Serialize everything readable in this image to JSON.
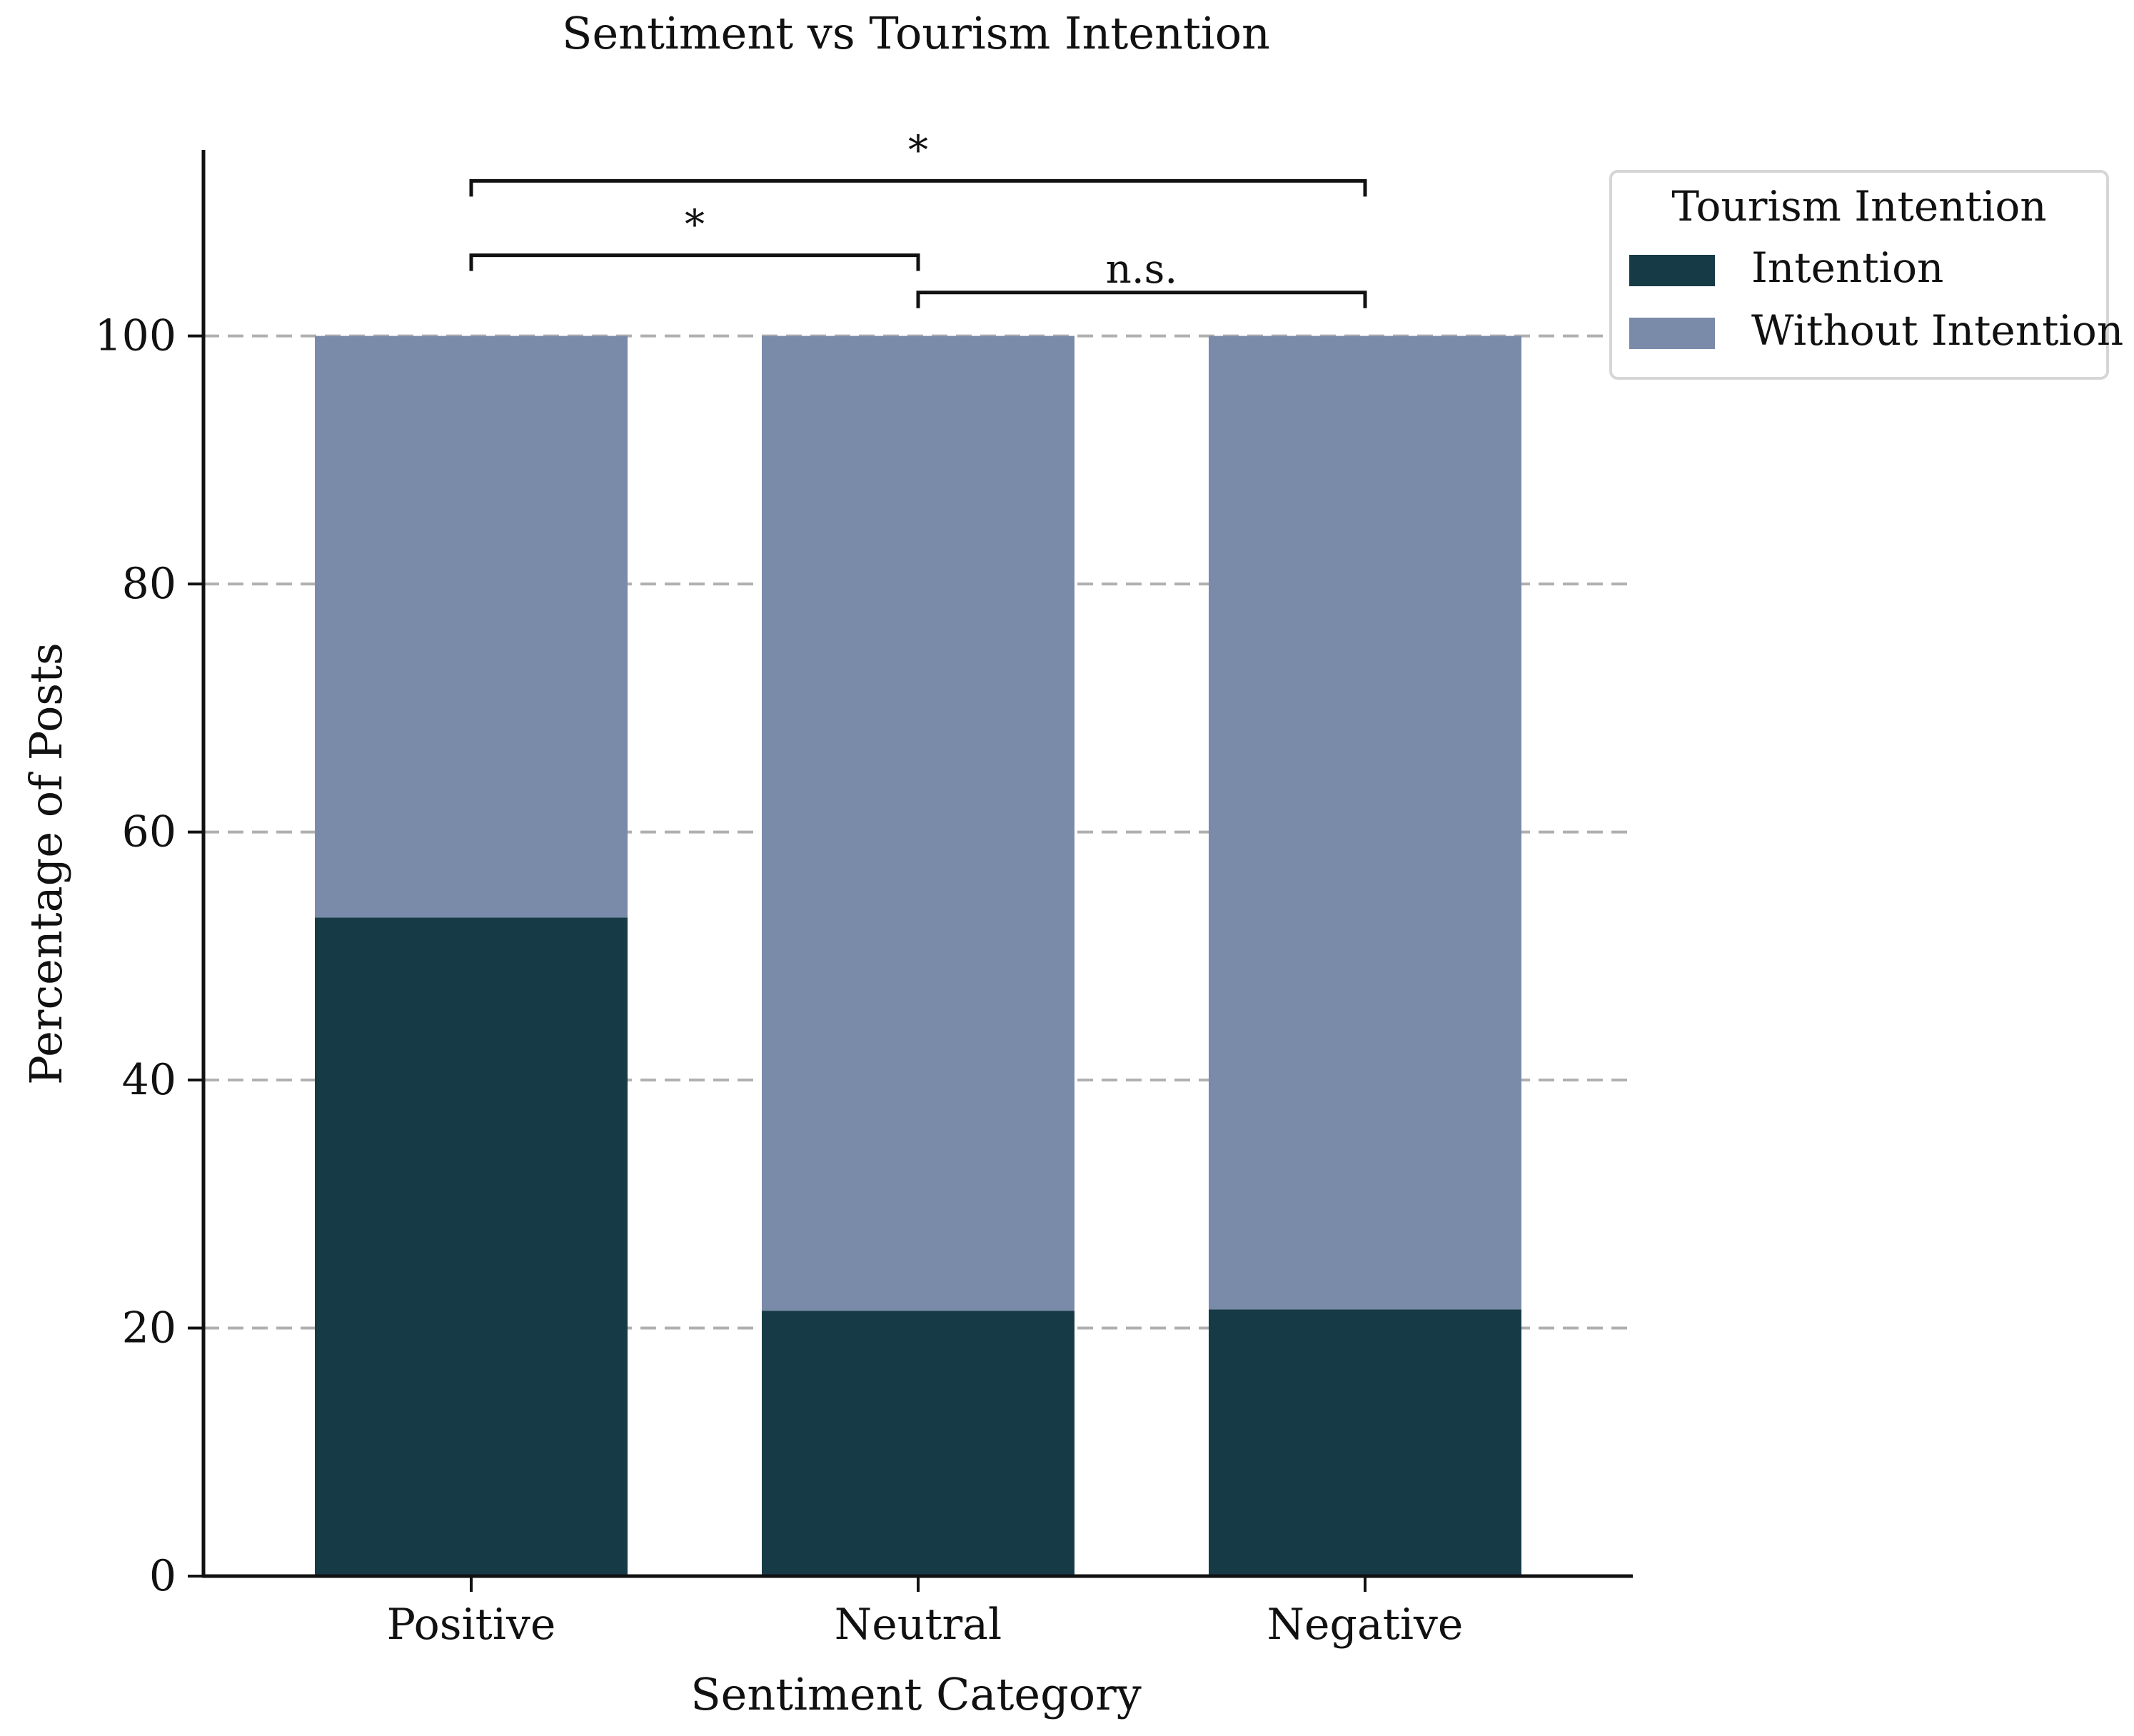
{
  "chart_data": {
    "type": "bar",
    "stacked": true,
    "title": "Sentiment vs Tourism Intention",
    "xlabel": "Sentiment Category",
    "ylabel": "Percentage of Posts",
    "categories": [
      "Positive",
      "Neutral",
      "Negative"
    ],
    "series": [
      {
        "name": "Intention",
        "color": "#173a47",
        "values": [
          53.1,
          21.4,
          21.5
        ]
      },
      {
        "name": "Without Intention",
        "color": "#7a8ba9",
        "values": [
          46.9,
          78.6,
          78.5
        ]
      }
    ],
    "ylim": [
      0,
      115
    ],
    "yticks": [
      "0",
      "20",
      "40",
      "60",
      "80",
      "100"
    ],
    "grid": {
      "axis": "y",
      "style": "dashed",
      "color": "#b0b0b0"
    },
    "legend": {
      "title": "Tourism Intention",
      "placement": "upper right, outside plot area",
      "entries": [
        "Intention",
        "Without Intention"
      ]
    },
    "significance_brackets": [
      {
        "from": "Positive",
        "to": "Negative",
        "label": "*",
        "level": 112.5
      },
      {
        "from": "Positive",
        "to": "Neutral",
        "label": "*",
        "level": 106.5
      },
      {
        "from": "Neutral",
        "to": "Negative",
        "label": "n.s.",
        "level": 103.5
      }
    ]
  }
}
